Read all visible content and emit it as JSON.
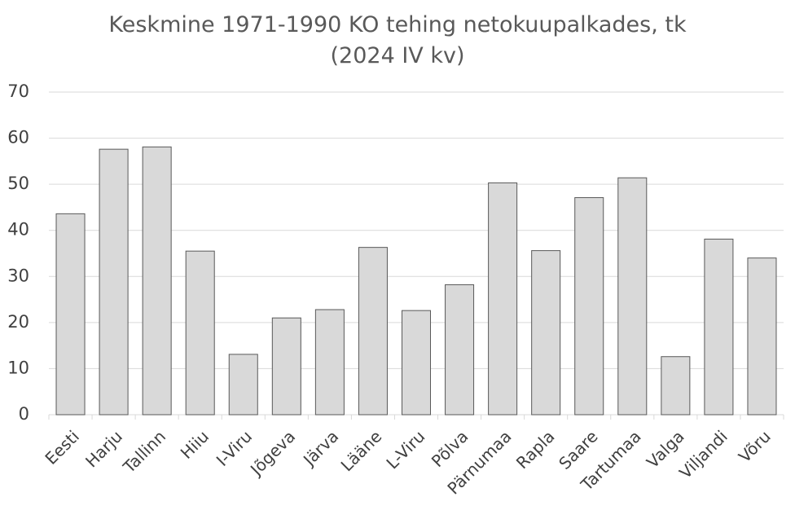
{
  "chart_data": {
    "type": "bar",
    "title": "Keskmine 1971-1990 KO tehing netokuupalkades, tk (2024 IV kv)",
    "categories": [
      "Eesti",
      "Harju",
      "Tallinn",
      "Hiiu",
      "I-Viru",
      "Jõgeva",
      "Järva",
      "Lääne",
      "L-Viru",
      "Põlva",
      "Pärnumaa",
      "Rapla",
      "Saare",
      "Tartumaa",
      "Valga",
      "Viljandi",
      "Võru"
    ],
    "values": [
      43.6,
      57.6,
      58.1,
      35.5,
      13.1,
      21.0,
      22.8,
      36.3,
      22.6,
      28.2,
      50.3,
      35.6,
      47.1,
      51.4,
      12.6,
      38.1,
      34.0
    ],
    "color": "#d9d9d9",
    "ylim": [
      0,
      70
    ],
    "yticks": [
      0,
      10,
      20,
      30,
      40,
      50,
      60,
      70
    ],
    "grid": true
  }
}
